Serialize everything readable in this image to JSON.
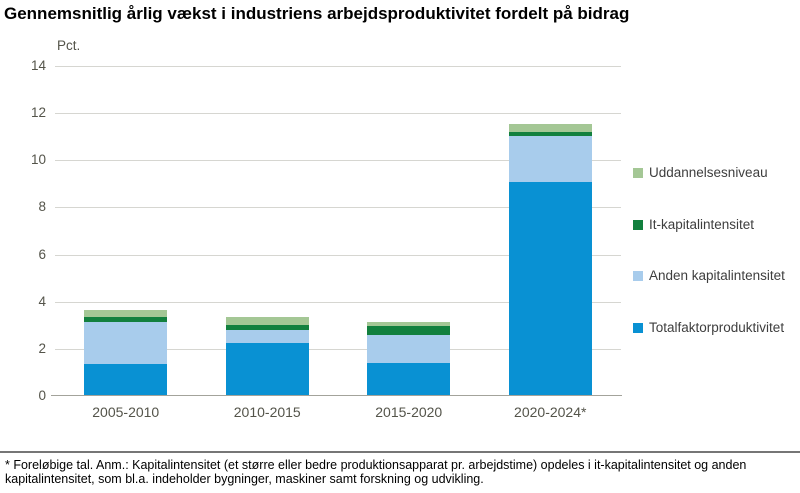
{
  "title": "Gennemsnitlig årlig vækst i industriens arbejdsproduktivitet fordelt på bidrag",
  "y_axis": {
    "unit_label": "Pct.",
    "ticks": [
      0,
      2,
      4,
      6,
      8,
      10,
      12,
      14
    ],
    "max": 14
  },
  "chart_data": {
    "type": "bar",
    "stacked": true,
    "title": "Gennemsnitlig årlig vækst i industriens arbejdsproduktivitet fordelt på bidrag",
    "ylabel": "Pct.",
    "ylim": [
      0,
      14
    ],
    "grid": true,
    "legend_position": "right",
    "categories": [
      "2005-2010",
      "2010-2015",
      "2015-2020",
      "2020-2024*"
    ],
    "series": [
      {
        "name": "Totalfaktorproduktivitet",
        "color": "#0991D3",
        "values": [
          1.35,
          2.25,
          1.4,
          9.1
        ]
      },
      {
        "name": "Anden kapitalintensitet",
        "color": "#A8CCEC",
        "values": [
          1.8,
          0.55,
          1.2,
          1.95
        ]
      },
      {
        "name": "It-kapitalintensitet",
        "color": "#12803E",
        "values": [
          0.2,
          0.2,
          0.35,
          0.15
        ]
      },
      {
        "name": "Uddannelsesniveau",
        "color": "#A4C795",
        "values": [
          0.3,
          0.35,
          0.2,
          0.35
        ]
      }
    ],
    "totals": [
      3.65,
      3.35,
      3.15,
      11.55
    ]
  },
  "legend": {
    "items": [
      {
        "label": "Uddannelsesniveau",
        "color": "#A4C795"
      },
      {
        "label": "It-kapitalintensitet",
        "color": "#12803E"
      },
      {
        "label": "Anden kapitalintensitet",
        "color": "#A8CCEC"
      },
      {
        "label": "Totalfaktorproduktivitet",
        "color": "#0991D3"
      }
    ]
  },
  "footnote": {
    "line1": "* Foreløbige tal. Anm.: Kapitalintensitet (et større eller bedre produktionsapparat pr. arbejdstime) opdeles i it-kapitalintensitet og anden",
    "line2": "kapitalintensitet, som bl.a. indeholder bygninger, maskiner samt forskning og udvikling."
  }
}
